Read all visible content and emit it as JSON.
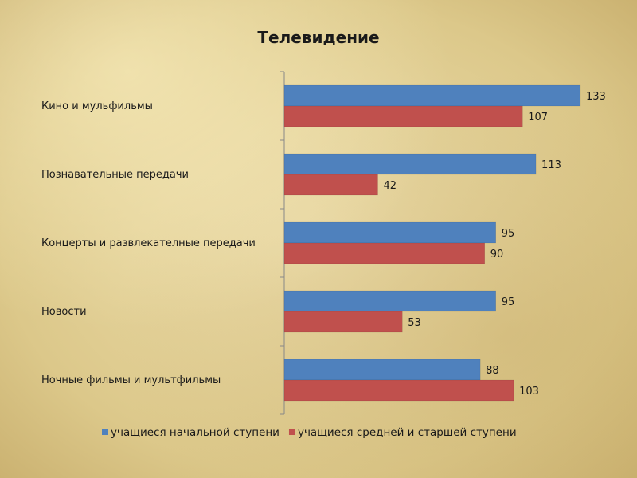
{
  "chart_data": {
    "type": "bar",
    "orientation": "horizontal",
    "title": "Телевидение",
    "categories": [
      "Кино и мульфильмы",
      "Познавательные передачи",
      "Концерты и развлекателные передачи",
      "Новости",
      "Ночные фильмы и мультфильмы"
    ],
    "series": [
      {
        "name": "учащиеся начальной ступени",
        "color": "#4f81bd",
        "values": [
          133,
          113,
          95,
          95,
          88
        ]
      },
      {
        "name": "учащиеся средней  и старшей ступени",
        "color": "#c0504d",
        "values": [
          107,
          42,
          90,
          53,
          103
        ]
      }
    ],
    "xlim": [
      0,
      133
    ],
    "grid": false,
    "legend": "bottom"
  }
}
